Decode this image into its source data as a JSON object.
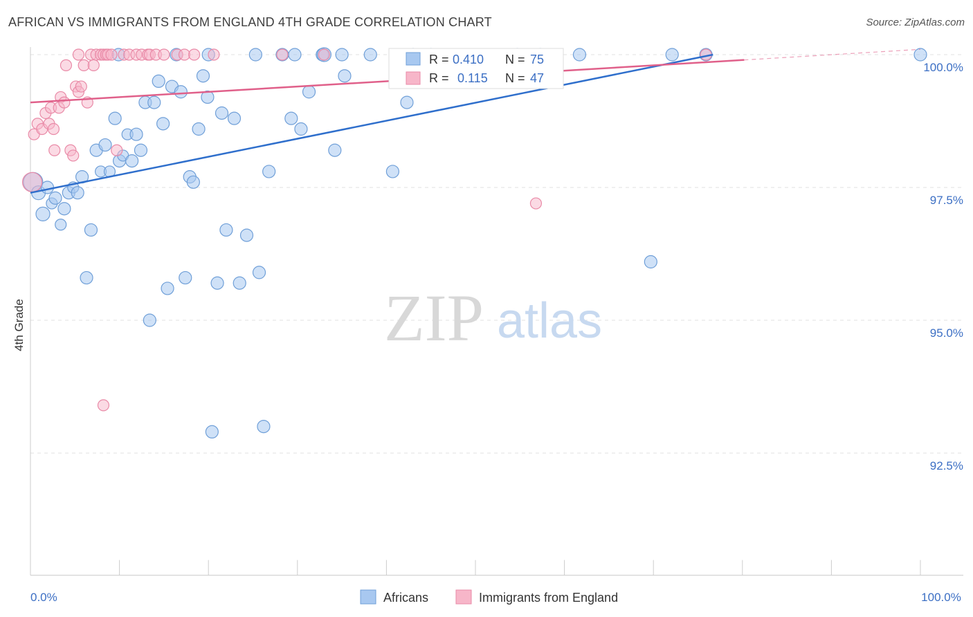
{
  "title": "AFRICAN VS IMMIGRANTS FROM ENGLAND 4TH GRADE CORRELATION CHART",
  "source": "Source: ZipAtlas.com",
  "watermark": {
    "zip": "ZIP",
    "atlas": "atlas"
  },
  "colors": {
    "blue_fill": "#a8c8f0",
    "blue_stroke": "#6f9fd8",
    "blue_line": "#2f6fcc",
    "pink_fill": "#f7b6c9",
    "pink_stroke": "#e98aa7",
    "pink_line": "#e0608a",
    "tick_text": "#3c6fc4",
    "grid": "#e2e2e2"
  },
  "stats": {
    "row1": {
      "r_label": "R =",
      "r_value": "0.410",
      "n_label": "N =",
      "n_value": "75"
    },
    "row2": {
      "r_label": "R =",
      "r_value": "0.115",
      "n_label": "N =",
      "n_value": "47"
    }
  },
  "chart_data": {
    "type": "scatter",
    "title": "AFRICAN VS IMMIGRANTS FROM ENGLAND 4TH GRADE CORRELATION CHART",
    "xlabel": "",
    "ylabel": "4th Grade",
    "xlim": [
      0,
      100
    ],
    "ylim": [
      90.2,
      100.4
    ],
    "x_ticks": [
      {
        "value": 0,
        "label": "0.0%"
      },
      {
        "value": 100,
        "label": "100.0%"
      }
    ],
    "y_ticks": [
      {
        "value": 100,
        "label": "100.0%"
      },
      {
        "value": 97.5,
        "label": "97.5%"
      },
      {
        "value": 95,
        "label": "95.0%"
      },
      {
        "value": 92.5,
        "label": "92.5%"
      }
    ],
    "grid": true,
    "legend_position": "bottom",
    "series": [
      {
        "name": "Africans",
        "color": "#a8c8f0",
        "trend": {
          "x": [
            0,
            76.7
          ],
          "y": [
            97.4,
            100.0
          ]
        },
        "points": [
          [
            0.3,
            97.6,
            14
          ],
          [
            0.9,
            97.4,
            10
          ],
          [
            1.4,
            97.0,
            10
          ],
          [
            1.9,
            97.5,
            9
          ],
          [
            2.4,
            97.2,
            8
          ],
          [
            2.8,
            97.3,
            9
          ],
          [
            3.4,
            96.8,
            8
          ],
          [
            3.8,
            97.1,
            9
          ],
          [
            4.3,
            97.4,
            9
          ],
          [
            4.8,
            97.5,
            8
          ],
          [
            5.3,
            97.4,
            9
          ],
          [
            5.8,
            97.7,
            9
          ],
          [
            6.3,
            95.8,
            9
          ],
          [
            6.8,
            96.7,
            9
          ],
          [
            7.4,
            98.2,
            9
          ],
          [
            7.9,
            97.8,
            8
          ],
          [
            8.4,
            98.3,
            9
          ],
          [
            8.9,
            97.8,
            8
          ],
          [
            9.5,
            98.8,
            9
          ],
          [
            10.0,
            98.0,
            9
          ],
          [
            10.4,
            98.1,
            8
          ],
          [
            10.9,
            98.5,
            8
          ],
          [
            11.4,
            98.0,
            9
          ],
          [
            11.9,
            98.5,
            9
          ],
          [
            12.4,
            98.2,
            9
          ],
          [
            12.9,
            99.1,
            9
          ],
          [
            13.4,
            95.0,
            9
          ],
          [
            13.9,
            99.1,
            9
          ],
          [
            14.4,
            99.5,
            9
          ],
          [
            14.9,
            98.7,
            9
          ],
          [
            15.4,
            95.6,
            9
          ],
          [
            15.9,
            99.4,
            9
          ],
          [
            16.4,
            100.0,
            9
          ],
          [
            16.9,
            99.3,
            9
          ],
          [
            17.4,
            95.8,
            9
          ],
          [
            17.9,
            97.7,
            9
          ],
          [
            18.3,
            97.6,
            9
          ],
          [
            18.9,
            98.6,
            9
          ],
          [
            19.4,
            99.6,
            9
          ],
          [
            19.9,
            99.2,
            9
          ],
          [
            20.4,
            92.9,
            9
          ],
          [
            21.0,
            95.7,
            9
          ],
          [
            21.5,
            98.9,
            9
          ],
          [
            22.0,
            96.7,
            9
          ],
          [
            22.9,
            98.8,
            9
          ],
          [
            23.5,
            95.7,
            9
          ],
          [
            24.3,
            96.6,
            9
          ],
          [
            25.3,
            100.0,
            9
          ],
          [
            25.7,
            95.9,
            9
          ],
          [
            26.2,
            93.0,
            9
          ],
          [
            26.8,
            97.8,
            9
          ],
          [
            28.3,
            100.0,
            9
          ],
          [
            29.3,
            98.8,
            9
          ],
          [
            29.7,
            100.0,
            9
          ],
          [
            30.4,
            98.6,
            9
          ],
          [
            31.3,
            99.3,
            9
          ],
          [
            32.8,
            100.0,
            9
          ],
          [
            33.0,
            100.0,
            10
          ],
          [
            34.2,
            98.2,
            9
          ],
          [
            35.0,
            100.0,
            9
          ],
          [
            35.3,
            99.6,
            9
          ],
          [
            38.2,
            100.0,
            9
          ],
          [
            40.7,
            97.8,
            9
          ],
          [
            42.3,
            99.1,
            9
          ],
          [
            43.0,
            100.0,
            9
          ],
          [
            45.0,
            100.0,
            9
          ],
          [
            54.7,
            100.0,
            9
          ],
          [
            57.3,
            100.0,
            9
          ],
          [
            61.7,
            100.0,
            9
          ],
          [
            69.7,
            96.1,
            9
          ],
          [
            72.1,
            100.0,
            9
          ],
          [
            75.9,
            100.0,
            9
          ],
          [
            100.0,
            100.0,
            9
          ],
          [
            20.0,
            100.0,
            9
          ],
          [
            9.9,
            100.0,
            9
          ]
        ]
      },
      {
        "name": "Immigrants from England",
        "color": "#f7b6c9",
        "trend": {
          "x": [
            0,
            80.2
          ],
          "y": [
            99.1,
            99.9
          ]
        },
        "trend_dashed": {
          "x": [
            80.2,
            100
          ],
          "y": [
            99.9,
            100.1
          ]
        },
        "points": [
          [
            0.2,
            97.6,
            14
          ],
          [
            0.4,
            98.5,
            8
          ],
          [
            0.8,
            98.7,
            8
          ],
          [
            1.3,
            98.6,
            8
          ],
          [
            1.7,
            98.9,
            8
          ],
          [
            2.1,
            98.7,
            8
          ],
          [
            2.3,
            99.0,
            8
          ],
          [
            2.6,
            98.6,
            8
          ],
          [
            2.7,
            98.2,
            8
          ],
          [
            3.2,
            99.0,
            8
          ],
          [
            3.4,
            99.2,
            8
          ],
          [
            3.8,
            99.1,
            8
          ],
          [
            4.0,
            99.8,
            8
          ],
          [
            4.5,
            98.2,
            8
          ],
          [
            4.8,
            98.1,
            8
          ],
          [
            5.1,
            99.4,
            8
          ],
          [
            5.4,
            99.3,
            8
          ],
          [
            5.7,
            99.4,
            8
          ],
          [
            6.0,
            99.8,
            8
          ],
          [
            6.4,
            99.1,
            8
          ],
          [
            5.4,
            100.0,
            8
          ],
          [
            6.8,
            100.0,
            8
          ],
          [
            7.1,
            99.8,
            8
          ],
          [
            7.4,
            100.0,
            8
          ],
          [
            7.9,
            100.0,
            8
          ],
          [
            8.2,
            100.0,
            8
          ],
          [
            8.5,
            100.0,
            8
          ],
          [
            8.7,
            100.0,
            8
          ],
          [
            8.2,
            93.4,
            8
          ],
          [
            9.1,
            100.0,
            8
          ],
          [
            9.7,
            98.2,
            8
          ],
          [
            10.5,
            100.0,
            8
          ],
          [
            11.1,
            100.0,
            8
          ],
          [
            11.9,
            100.0,
            8
          ],
          [
            12.5,
            100.0,
            8
          ],
          [
            13.2,
            100.0,
            8
          ],
          [
            13.4,
            100.0,
            8
          ],
          [
            14.1,
            100.0,
            8
          ],
          [
            15.0,
            100.0,
            8
          ],
          [
            16.5,
            100.0,
            8
          ],
          [
            17.3,
            100.0,
            8
          ],
          [
            18.4,
            100.0,
            8
          ],
          [
            20.6,
            100.0,
            8
          ],
          [
            28.3,
            100.0,
            8
          ],
          [
            33.0,
            100.0,
            8
          ],
          [
            56.8,
            97.2,
            8
          ],
          [
            75.9,
            100.0,
            8
          ]
        ]
      }
    ],
    "stats": [
      {
        "series": "Africans",
        "R": 0.41,
        "N": 75
      },
      {
        "series": "Immigrants from England",
        "R": 0.115,
        "N": 47
      }
    ]
  }
}
